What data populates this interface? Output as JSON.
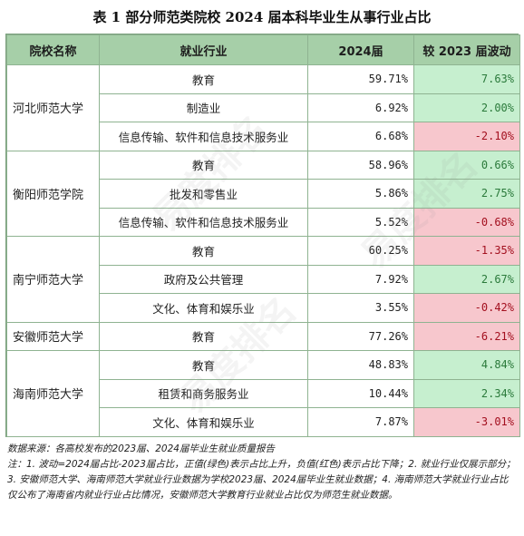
{
  "title": "表 1  部分师范类院校 2024 届本科毕业生从事行业占比",
  "headers": [
    "院校名称",
    "就业行业",
    "2024届",
    "较 2023 届波动"
  ],
  "rows": [
    {
      "school": "河北师范大学",
      "industry": "教育",
      "share": "59.71%",
      "change": "7.63%",
      "dir": "up"
    },
    {
      "school": "",
      "industry": "制造业",
      "share": "6.92%",
      "change": "2.00%",
      "dir": "up"
    },
    {
      "school": "",
      "industry": "信息传输、软件和信息技术服务业",
      "share": "6.68%",
      "change": "-2.10%",
      "dir": "down"
    },
    {
      "school": "衡阳师范学院",
      "industry": "教育",
      "share": "58.96%",
      "change": "0.66%",
      "dir": "up"
    },
    {
      "school": "",
      "industry": "批发和零售业",
      "share": "5.86%",
      "change": "2.75%",
      "dir": "up"
    },
    {
      "school": "",
      "industry": "信息传输、软件和信息技术服务业",
      "share": "5.52%",
      "change": "-0.68%",
      "dir": "down"
    },
    {
      "school": "南宁师范大学",
      "industry": "教育",
      "share": "60.25%",
      "change": "-1.35%",
      "dir": "down"
    },
    {
      "school": "",
      "industry": "政府及公共管理",
      "share": "7.92%",
      "change": "2.67%",
      "dir": "up"
    },
    {
      "school": "",
      "industry": "文化、体育和娱乐业",
      "share": "3.55%",
      "change": "-0.42%",
      "dir": "down"
    },
    {
      "school": "安徽师范大学",
      "industry": "教育",
      "share": "77.26%",
      "change": "-6.21%",
      "dir": "down"
    },
    {
      "school": "海南师范大学",
      "industry": "教育",
      "share": "48.83%",
      "change": "4.84%",
      "dir": "up"
    },
    {
      "school": "",
      "industry": "租赁和商务服务业",
      "share": "10.44%",
      "change": "2.34%",
      "dir": "up"
    },
    {
      "school": "",
      "industry": "文化、体育和娱乐业",
      "share": "7.87%",
      "change": "-3.01%",
      "dir": "down"
    }
  ],
  "notes": {
    "source": "数据来源：各高校发布的2023届、2024届毕业生就业质量报告",
    "note": "注：1. 波动=2024届占比-2023届占比，正值(绿色)表示占比上升，负值(红色)表示占比下降；2. 就业行业仅展示部分；3. 安徽师范大学、海南师范大学就业行业数据为学校2023届、2024届毕业生就业数据；4. 海南师范大学就业行业占比仅公布了海南省内就业行业占比情况，安徽师范大学教育行业就业占比仅为师范生就业数据。"
  },
  "colors": {
    "header_bg": "#a6cfa8",
    "up_bg": "#c6efcf",
    "up_text": "#2b7a3b",
    "down_bg": "#f7c7cd",
    "down_text": "#a3101f"
  },
  "watermark_icon": "watermark-logo-icon"
}
